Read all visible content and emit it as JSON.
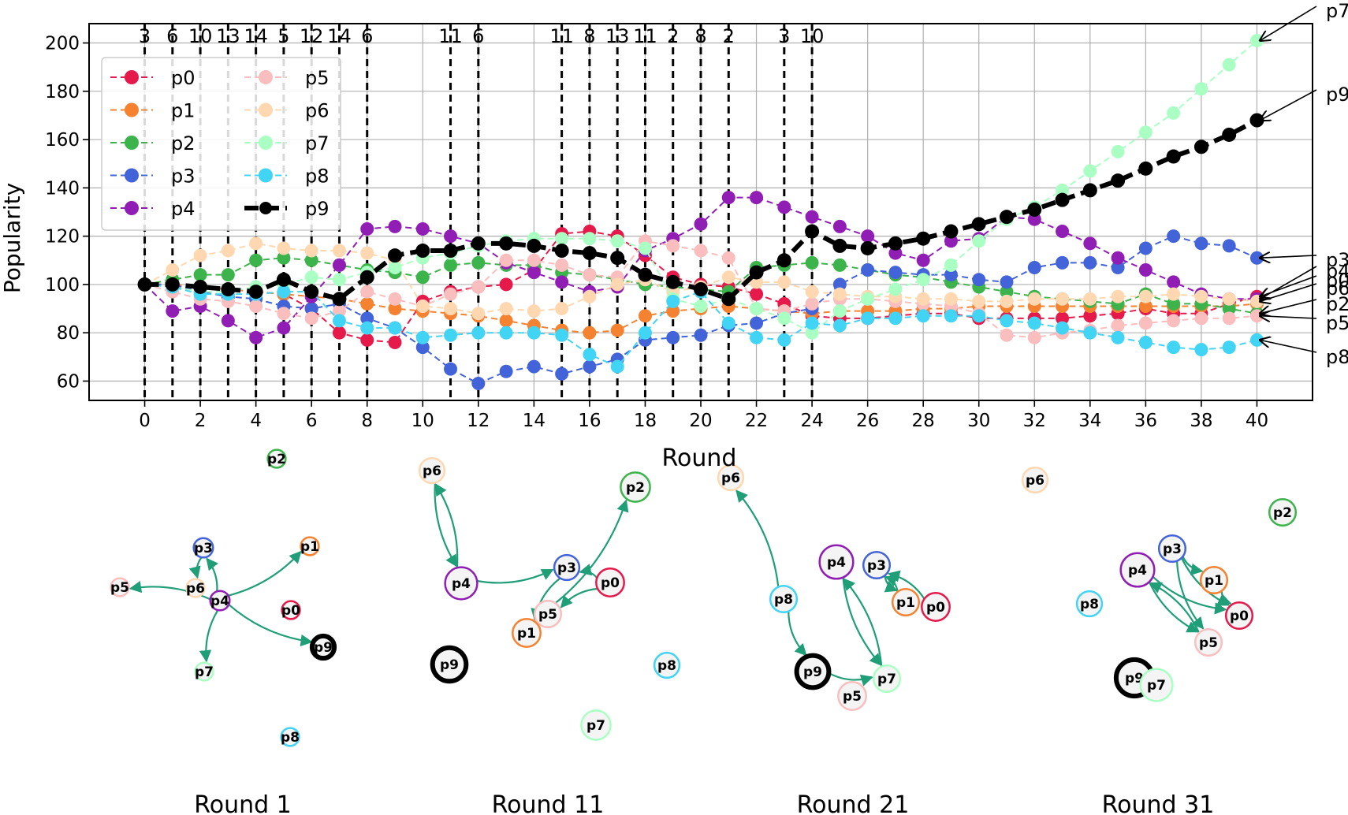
{
  "chart_data": [
    {
      "type": "line",
      "title": "",
      "xlabel": "Round",
      "ylabel": "Popularity",
      "xlim": [
        -2,
        42
      ],
      "ylim": [
        52,
        208
      ],
      "xticks": [
        0,
        2,
        4,
        6,
        8,
        10,
        12,
        14,
        16,
        18,
        20,
        22,
        24,
        26,
        28,
        30,
        32,
        34,
        36,
        38,
        40
      ],
      "yticks": [
        60,
        80,
        100,
        120,
        140,
        160,
        180,
        200
      ],
      "grid": true,
      "legend": "top-left, 2 columns",
      "x": [
        0,
        1,
        2,
        3,
        4,
        5,
        6,
        7,
        8,
        9,
        10,
        11,
        12,
        13,
        14,
        15,
        16,
        17,
        18,
        19,
        20,
        21,
        22,
        23,
        24,
        25,
        26,
        27,
        28,
        29,
        30,
        31,
        32,
        33,
        34,
        35,
        36,
        37,
        38,
        39,
        40
      ],
      "series": [
        {
          "name": "p0",
          "color": "#e6194b",
          "values": [
            100,
            100,
            99,
            98,
            97,
            96,
            90,
            80,
            77,
            76,
            93,
            97,
            99,
            100,
            106,
            121,
            122,
            120,
            112,
            103,
            100,
            99,
            96,
            92,
            87,
            86,
            86,
            87,
            88,
            88,
            86,
            86,
            86,
            86,
            87,
            88,
            90,
            88,
            88,
            92,
            95
          ]
        },
        {
          "name": "p1",
          "color": "#f58231",
          "values": [
            100,
            100,
            99,
            98,
            97,
            96,
            95,
            94,
            92,
            90,
            89,
            88,
            87,
            85,
            83,
            81,
            80,
            81,
            87,
            89,
            90,
            91,
            90,
            89,
            88,
            89,
            89,
            89,
            90,
            90,
            91,
            91,
            91,
            91,
            91,
            91,
            91,
            91,
            91,
            91,
            92
          ]
        },
        {
          "name": "p2",
          "color": "#3cb44b",
          "values": [
            100,
            102,
            104,
            104,
            110,
            111,
            110,
            108,
            106,
            105,
            103,
            108,
            109,
            108,
            108,
            105,
            104,
            102,
            100,
            99,
            98,
            97,
            107,
            108,
            109,
            108,
            106,
            104,
            103,
            101,
            99,
            97,
            95,
            94,
            93,
            92,
            96,
            92,
            92,
            90,
            88
          ]
        },
        {
          "name": "p3",
          "color": "#4363d8",
          "values": [
            100,
            100,
            97,
            95,
            94,
            91,
            90,
            92,
            86,
            82,
            74,
            65,
            59,
            64,
            66,
            63,
            66,
            69,
            77,
            78,
            79,
            83,
            84,
            88,
            90,
            100,
            106,
            105,
            104,
            104,
            102,
            101,
            107,
            109,
            109,
            107,
            115,
            120,
            117,
            116,
            111
          ]
        },
        {
          "name": "p4",
          "color": "#911eb4",
          "values": [
            100,
            89,
            91,
            85,
            78,
            82,
            95,
            108,
            123,
            124,
            123,
            120,
            117,
            109,
            105,
            101,
            97,
            99,
            114,
            119,
            125,
            136,
            136,
            132,
            128,
            124,
            120,
            113,
            110,
            118,
            119,
            128,
            127,
            122,
            117,
            111,
            106,
            101,
            96,
            94,
            94
          ]
        },
        {
          "name": "p5",
          "color": "#fabebe",
          "values": [
            100,
            97,
            94,
            93,
            91,
            88,
            86,
            89,
            97,
            94,
            91,
            96,
            99,
            110,
            110,
            108,
            104,
            103,
            118,
            116,
            114,
            111,
            90,
            89,
            92,
            94,
            94,
            93,
            92,
            91,
            88,
            79,
            78,
            80,
            81,
            83,
            84,
            85,
            86,
            86,
            87
          ]
        },
        {
          "name": "p6",
          "color": "#ffd8b1",
          "values": [
            100,
            106,
            112,
            114,
            117,
            115,
            114,
            114,
            113,
            110,
            91,
            90,
            88,
            90,
            89,
            90,
            95,
            100,
            102,
            97,
            99,
            103,
            101,
            101,
            97,
            96,
            95,
            95,
            94,
            94,
            93,
            93,
            94,
            94,
            94,
            95,
            95,
            96,
            95,
            94,
            93
          ]
        },
        {
          "name": "p7",
          "color": "#aaffc3",
          "values": [
            100,
            99,
            97,
            97,
            99,
            100,
            103,
            102,
            105,
            107,
            111,
            113,
            116,
            118,
            119,
            119,
            119,
            118,
            115,
            94,
            91,
            94,
            90,
            86,
            80,
            89,
            94,
            98,
            102,
            108,
            118,
            127,
            132,
            139,
            147,
            155,
            163,
            171,
            181,
            191,
            201
          ]
        },
        {
          "name": "p8",
          "color": "#42d4f4",
          "values": [
            100,
            99,
            96,
            96,
            96,
            97,
            97,
            85,
            82,
            82,
            78,
            79,
            80,
            80,
            80,
            79,
            71,
            66,
            80,
            93,
            97,
            84,
            78,
            77,
            84,
            83,
            86,
            86,
            87,
            87,
            87,
            85,
            84,
            82,
            80,
            78,
            76,
            74,
            73,
            74,
            77
          ]
        },
        {
          "name": "p9",
          "color": "#000000",
          "values": [
            100,
            100,
            99,
            98,
            97,
            102,
            97,
            94,
            103,
            112,
            114,
            114,
            117,
            117,
            116,
            114,
            113,
            111,
            104,
            101,
            98,
            94,
            105,
            110,
            122,
            116,
            115,
            117,
            119,
            122,
            125,
            128,
            131,
            135,
            139,
            143,
            148,
            153,
            157,
            162,
            168
          ]
        }
      ],
      "vlines": [
        {
          "x": 0,
          "label": "3"
        },
        {
          "x": 1,
          "label": "6"
        },
        {
          "x": 2,
          "label": "10"
        },
        {
          "x": 3,
          "label": "13"
        },
        {
          "x": 4,
          "label": "14"
        },
        {
          "x": 5,
          "label": "5"
        },
        {
          "x": 6,
          "label": "12"
        },
        {
          "x": 7,
          "label": "14"
        },
        {
          "x": 8,
          "label": "6"
        },
        {
          "x": 11,
          "label": "11"
        },
        {
          "x": 12,
          "label": "6"
        },
        {
          "x": 15,
          "label": "11"
        },
        {
          "x": 16,
          "label": "8"
        },
        {
          "x": 17,
          "label": "13"
        },
        {
          "x": 18,
          "label": "11"
        },
        {
          "x": 19,
          "label": "2"
        },
        {
          "x": 20,
          "label": "8"
        },
        {
          "x": 21,
          "label": "2"
        },
        {
          "x": 23,
          "label": "3"
        },
        {
          "x": 24,
          "label": "10"
        }
      ],
      "end_labels": [
        "p7",
        "p9",
        "p3",
        "p4",
        "p0",
        "p6",
        "p2",
        "p5",
        "p8"
      ]
    },
    {
      "type": "network",
      "panels": [
        {
          "title": "Round 1",
          "nodes": [
            {
              "id": "p2",
              "color": "#3cb44b",
              "size": 0.3
            },
            {
              "id": "p3",
              "color": "#4363d8",
              "size": 0.35
            },
            {
              "id": "p1",
              "color": "#f58231",
              "size": 0.3
            },
            {
              "id": "p5",
              "color": "#fabebe",
              "size": 0.3
            },
            {
              "id": "p6",
              "color": "#ffd8b1",
              "size": 0.3
            },
            {
              "id": "p4",
              "color": "#911eb4",
              "size": 0.35
            },
            {
              "id": "p0",
              "color": "#e6194b",
              "size": 0.3
            },
            {
              "id": "p9",
              "color": "#000000",
              "size": 0.45
            },
            {
              "id": "p7",
              "color": "#aaffc3",
              "size": 0.3
            },
            {
              "id": "p8",
              "color": "#42d4f4",
              "size": 0.3
            }
          ],
          "edges": [
            [
              "p4",
              "p5"
            ],
            [
              "p4",
              "p3"
            ],
            [
              "p3",
              "p6"
            ],
            [
              "p4",
              "p1"
            ],
            [
              "p4",
              "p9"
            ],
            [
              "p4",
              "p7"
            ]
          ]
        },
        {
          "title": "Round 11",
          "nodes": [
            {
              "id": "p6",
              "color": "#ffd8b1",
              "size": 0.55
            },
            {
              "id": "p2",
              "color": "#3cb44b",
              "size": 0.7
            },
            {
              "id": "p3",
              "color": "#4363d8",
              "size": 0.55
            },
            {
              "id": "p4",
              "color": "#911eb4",
              "size": 0.8
            },
            {
              "id": "p0",
              "color": "#e6194b",
              "size": 0.65
            },
            {
              "id": "p5",
              "color": "#fabebe",
              "size": 0.6
            },
            {
              "id": "p1",
              "color": "#f58231",
              "size": 0.65
            },
            {
              "id": "p9",
              "color": "#000000",
              "size": 0.85
            },
            {
              "id": "p8",
              "color": "#42d4f4",
              "size": 0.55
            },
            {
              "id": "p7",
              "color": "#aaffc3",
              "size": 0.7
            }
          ],
          "edges": [
            [
              "p4",
              "p6"
            ],
            [
              "p6",
              "p4"
            ],
            [
              "p4",
              "p3"
            ],
            [
              "p0",
              "p3"
            ],
            [
              "p0",
              "p5"
            ],
            [
              "p5",
              "p2"
            ],
            [
              "p3",
              "p1"
            ]
          ]
        },
        {
          "title": "Round 21",
          "nodes": [
            {
              "id": "p6",
              "color": "#ffd8b1",
              "size": 0.55
            },
            {
              "id": "p4",
              "color": "#911eb4",
              "size": 0.85
            },
            {
              "id": "p3",
              "color": "#4363d8",
              "size": 0.6
            },
            {
              "id": "p1",
              "color": "#f58231",
              "size": 0.6
            },
            {
              "id": "p0",
              "color": "#e6194b",
              "size": 0.65
            },
            {
              "id": "p8",
              "color": "#42d4f4",
              "size": 0.6
            },
            {
              "id": "p9",
              "color": "#000000",
              "size": 0.8
            },
            {
              "id": "p7",
              "color": "#aaffc3",
              "size": 0.6
            },
            {
              "id": "p5",
              "color": "#fabebe",
              "size": 0.65
            }
          ],
          "edges": [
            [
              "p8",
              "p6"
            ],
            [
              "p8",
              "p9"
            ],
            [
              "p9",
              "p7"
            ],
            [
              "p4",
              "p7"
            ],
            [
              "p7",
              "p4"
            ],
            [
              "p1",
              "p3"
            ],
            [
              "p0",
              "p3"
            ],
            [
              "p3",
              "p1"
            ]
          ]
        },
        {
          "title": "Round 31",
          "nodes": [
            {
              "id": "p2",
              "color": "#3cb44b",
              "size": 0.6
            },
            {
              "id": "p6",
              "color": "#ffd8b1",
              "size": 0.55
            },
            {
              "id": "p3",
              "color": "#4363d8",
              "size": 0.6
            },
            {
              "id": "p4",
              "color": "#911eb4",
              "size": 0.85
            },
            {
              "id": "p1",
              "color": "#f58231",
              "size": 0.6
            },
            {
              "id": "p8",
              "color": "#42d4f4",
              "size": 0.55
            },
            {
              "id": "p0",
              "color": "#e6194b",
              "size": 0.6
            },
            {
              "id": "p5",
              "color": "#fabebe",
              "size": 0.6
            },
            {
              "id": "p9",
              "color": "#000000",
              "size": 0.95
            },
            {
              "id": "p7",
              "color": "#aaffc3",
              "size": 0.8
            }
          ],
          "edges": [
            [
              "p4",
              "p5"
            ],
            [
              "p5",
              "p4"
            ],
            [
              "p3",
              "p5"
            ],
            [
              "p3",
              "p1"
            ],
            [
              "p3",
              "p0"
            ],
            [
              "p1",
              "p0"
            ],
            [
              "p4",
              "p0"
            ]
          ]
        }
      ]
    }
  ]
}
